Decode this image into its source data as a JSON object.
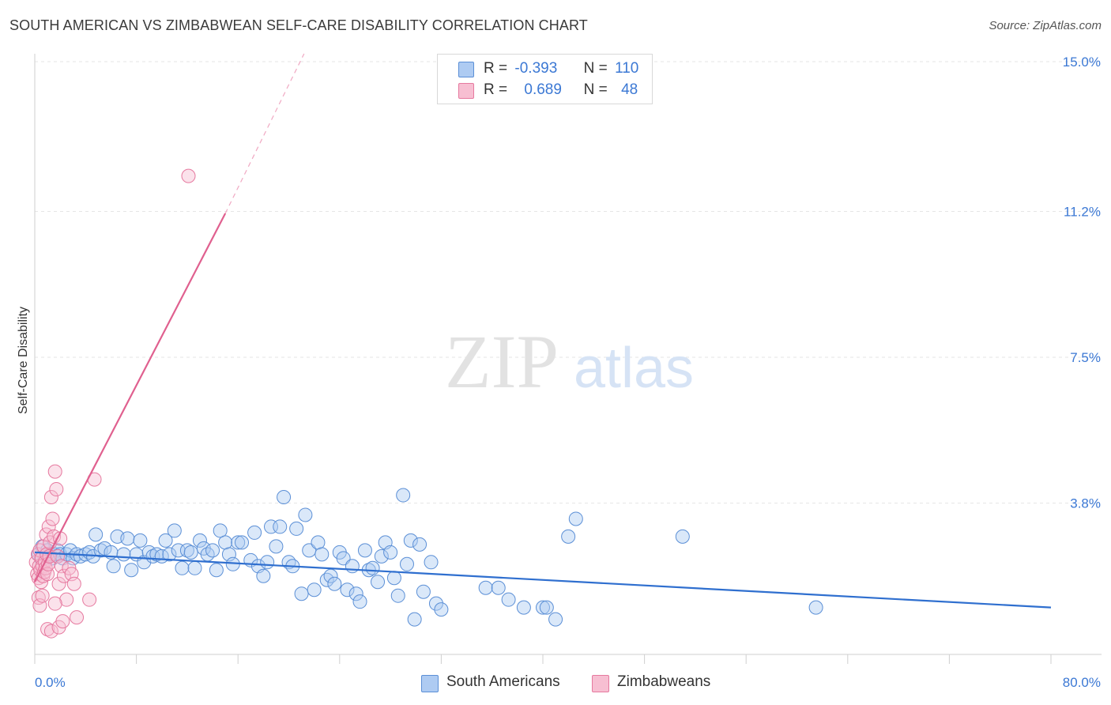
{
  "title": "SOUTH AMERICAN VS ZIMBABWEAN SELF-CARE DISABILITY CORRELATION CHART",
  "source": "Source: ZipAtlas.com",
  "watermark": {
    "zip": "ZIP",
    "atlas": "atlas"
  },
  "legend": {
    "r_label": "R =",
    "n_label": "N =",
    "series": [
      {
        "name": "South Americans",
        "r": "-0.393",
        "n": "110",
        "fill": "#aecbf2",
        "stroke": "#5b8fd6"
      },
      {
        "name": "Zimbabweans",
        "r": "0.689",
        "n": "48",
        "fill": "#f7bfd2",
        "stroke": "#e6799f"
      }
    ]
  },
  "chart_data": {
    "type": "scatter",
    "title": "SOUTH AMERICAN VS ZIMBABWEAN SELF-CARE DISABILITY CORRELATION CHART",
    "xlabel": "",
    "ylabel": "Self-Care Disability",
    "xlim": [
      0,
      80
    ],
    "ylim": [
      0,
      15.5
    ],
    "x_tick_labels": {
      "left": "0.0%",
      "right": "80.0%"
    },
    "y_ticks": [
      {
        "value": 3.8,
        "label": "3.8%"
      },
      {
        "value": 7.5,
        "label": "7.5%"
      },
      {
        "value": 11.2,
        "label": "11.2%"
      },
      {
        "value": 15.0,
        "label": "15.0%"
      }
    ],
    "colors": {
      "blue": "#5b8fd6",
      "blue_line": "#2f6fcf",
      "pink": "#e6799f",
      "pink_line": "#e0608f"
    },
    "series": [
      {
        "name": "South Americans",
        "trend": {
          "x0": 0,
          "y0": 2.55,
          "x1": 80,
          "y1": 1.15
        },
        "points": [
          [
            0.3,
            2.5
          ],
          [
            0.6,
            2.7
          ],
          [
            0.8,
            2.4
          ],
          [
            1.0,
            2.6
          ],
          [
            1.2,
            2.5
          ],
          [
            1.4,
            2.4
          ],
          [
            1.6,
            2.5
          ],
          [
            1.8,
            2.6
          ],
          [
            2.0,
            2.5
          ],
          [
            2.2,
            2.4
          ],
          [
            2.5,
            2.5
          ],
          [
            2.8,
            2.6
          ],
          [
            3.0,
            2.4
          ],
          [
            3.3,
            2.5
          ],
          [
            3.6,
            2.45
          ],
          [
            4.0,
            2.5
          ],
          [
            4.3,
            2.55
          ],
          [
            4.6,
            2.45
          ],
          [
            4.8,
            3.0
          ],
          [
            5.2,
            2.6
          ],
          [
            5.5,
            2.65
          ],
          [
            6.0,
            2.55
          ],
          [
            6.2,
            2.2
          ],
          [
            6.5,
            2.95
          ],
          [
            7.0,
            2.5
          ],
          [
            7.3,
            2.9
          ],
          [
            7.6,
            2.1
          ],
          [
            8.0,
            2.5
          ],
          [
            8.3,
            2.85
          ],
          [
            8.6,
            2.3
          ],
          [
            9.0,
            2.55
          ],
          [
            9.3,
            2.45
          ],
          [
            9.6,
            2.5
          ],
          [
            10.0,
            2.45
          ],
          [
            10.3,
            2.85
          ],
          [
            10.6,
            2.5
          ],
          [
            11.0,
            3.1
          ],
          [
            11.3,
            2.6
          ],
          [
            11.6,
            2.15
          ],
          [
            12.0,
            2.6
          ],
          [
            12.3,
            2.55
          ],
          [
            12.6,
            2.15
          ],
          [
            13.0,
            2.85
          ],
          [
            13.3,
            2.65
          ],
          [
            13.6,
            2.5
          ],
          [
            14.0,
            2.6
          ],
          [
            14.3,
            2.1
          ],
          [
            14.6,
            3.1
          ],
          [
            15.0,
            2.8
          ],
          [
            15.3,
            2.5
          ],
          [
            15.6,
            2.25
          ],
          [
            16.0,
            2.8
          ],
          [
            16.3,
            2.8
          ],
          [
            17.0,
            2.35
          ],
          [
            17.3,
            3.05
          ],
          [
            17.6,
            2.2
          ],
          [
            18.0,
            1.95
          ],
          [
            18.3,
            2.3
          ],
          [
            18.6,
            3.2
          ],
          [
            19.0,
            2.7
          ],
          [
            19.3,
            3.2
          ],
          [
            19.6,
            3.95
          ],
          [
            20.0,
            2.3
          ],
          [
            20.3,
            2.2
          ],
          [
            20.6,
            3.15
          ],
          [
            21.0,
            1.5
          ],
          [
            21.3,
            3.5
          ],
          [
            21.6,
            2.6
          ],
          [
            22.0,
            1.6
          ],
          [
            22.3,
            2.8
          ],
          [
            22.6,
            2.5
          ],
          [
            23.0,
            1.85
          ],
          [
            23.3,
            1.95
          ],
          [
            23.6,
            1.75
          ],
          [
            24.0,
            2.55
          ],
          [
            24.3,
            2.4
          ],
          [
            24.6,
            1.6
          ],
          [
            25.0,
            2.2
          ],
          [
            25.3,
            1.5
          ],
          [
            25.6,
            1.3
          ],
          [
            26.0,
            2.6
          ],
          [
            26.3,
            2.1
          ],
          [
            26.6,
            2.15
          ],
          [
            27.0,
            1.8
          ],
          [
            27.3,
            2.45
          ],
          [
            27.6,
            2.8
          ],
          [
            28.0,
            2.55
          ],
          [
            28.3,
            1.9
          ],
          [
            28.6,
            1.45
          ],
          [
            29.0,
            4.0
          ],
          [
            29.3,
            2.25
          ],
          [
            29.6,
            2.85
          ],
          [
            29.9,
            0.85
          ],
          [
            30.3,
            2.75
          ],
          [
            30.6,
            1.55
          ],
          [
            31.2,
            2.3
          ],
          [
            31.6,
            1.25
          ],
          [
            32.0,
            1.1
          ],
          [
            35.5,
            1.65
          ],
          [
            36.5,
            1.65
          ],
          [
            37.3,
            1.35
          ],
          [
            38.5,
            1.15
          ],
          [
            40.0,
            1.15
          ],
          [
            40.3,
            1.15
          ],
          [
            41.0,
            0.85
          ],
          [
            42.0,
            2.95
          ],
          [
            42.6,
            3.4
          ],
          [
            51.0,
            2.95
          ],
          [
            61.5,
            1.15
          ],
          [
            0.5,
            2.4
          ]
        ]
      },
      {
        "name": "Zimbabweans",
        "trend": {
          "x0": 0,
          "y0": 1.8,
          "x1": 15,
          "y1": 11.15
        },
        "trend_dashed": {
          "x0": 15,
          "y0": 11.15,
          "x1": 21.2,
          "y1": 15.2
        },
        "points": [
          [
            0.1,
            2.3
          ],
          [
            0.2,
            2.0
          ],
          [
            0.25,
            2.5
          ],
          [
            0.3,
            1.9
          ],
          [
            0.35,
            2.2
          ],
          [
            0.4,
            2.6
          ],
          [
            0.45,
            2.1
          ],
          [
            0.5,
            1.8
          ],
          [
            0.55,
            2.4
          ],
          [
            0.6,
            2.2
          ],
          [
            0.65,
            1.95
          ],
          [
            0.7,
            2.7
          ],
          [
            0.75,
            2.05
          ],
          [
            0.8,
            2.3
          ],
          [
            0.85,
            2.15
          ],
          [
            0.9,
            3.0
          ],
          [
            0.95,
            2.5
          ],
          [
            1.0,
            2.0
          ],
          [
            1.05,
            2.25
          ],
          [
            1.1,
            3.2
          ],
          [
            1.15,
            2.45
          ],
          [
            1.2,
            2.8
          ],
          [
            1.3,
            3.95
          ],
          [
            1.4,
            3.4
          ],
          [
            1.5,
            2.95
          ],
          [
            1.6,
            4.6
          ],
          [
            1.7,
            4.15
          ],
          [
            1.8,
            2.45
          ],
          [
            1.9,
            1.75
          ],
          [
            2.0,
            2.9
          ],
          [
            2.1,
            2.2
          ],
          [
            2.3,
            1.95
          ],
          [
            2.5,
            1.35
          ],
          [
            2.7,
            2.15
          ],
          [
            2.9,
            2.0
          ],
          [
            3.1,
            1.75
          ],
          [
            3.3,
            0.9
          ],
          [
            0.3,
            1.4
          ],
          [
            0.4,
            1.2
          ],
          [
            0.6,
            1.45
          ],
          [
            1.0,
            0.6
          ],
          [
            1.3,
            0.55
          ],
          [
            1.6,
            1.25
          ],
          [
            1.9,
            0.65
          ],
          [
            2.2,
            0.8
          ],
          [
            4.3,
            1.35
          ],
          [
            4.7,
            4.4
          ],
          [
            12.1,
            12.1
          ]
        ]
      }
    ]
  },
  "bottom_legend": [
    {
      "label": "South Americans"
    },
    {
      "label": "Zimbabweans"
    }
  ]
}
